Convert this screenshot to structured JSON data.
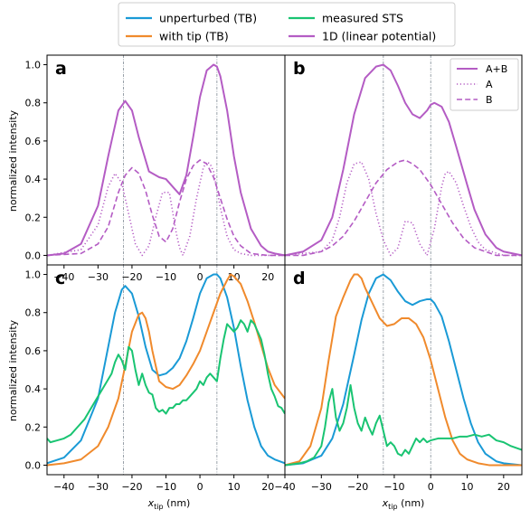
{
  "colors": {
    "unperturbed": "#1a9ad6",
    "with_tip": "#f08a2c",
    "measured": "#19c472",
    "linear": "#b45cc4",
    "vline": "#7f8a94"
  },
  "legend_top": [
    {
      "label": "unperturbed (TB)",
      "color": "#1a9ad6"
    },
    {
      "label": "with tip (TB)",
      "color": "#f08a2c"
    },
    {
      "label": "measured STS",
      "color": "#19c472"
    },
    {
      "label": "1D (linear potential)",
      "color": "#b45cc4"
    }
  ],
  "legend_panel_b": [
    {
      "label": "A+B",
      "style": "solid"
    },
    {
      "label": "A",
      "style": "dotted"
    },
    {
      "label": "B",
      "style": "dashed"
    }
  ],
  "ylabel": "normalized intensity",
  "xlabel_main": "x",
  "xlabel_sub": "tip",
  "xlabel_unit": " (nm)",
  "chart_data": [
    {
      "panel": "a",
      "type": "line",
      "xlim": [
        -45,
        25
      ],
      "ylim": [
        -0.05,
        1.05
      ],
      "xticks": [
        -40,
        -30,
        -20,
        -10,
        0,
        10,
        20
      ],
      "yticks": [
        0.0,
        0.2,
        0.4,
        0.6,
        0.8,
        1.0
      ],
      "vlines": [
        -22.5,
        5
      ],
      "series": [
        {
          "name": "A+B",
          "key": "linear",
          "dash": "solid",
          "x": [
            -45,
            -40,
            -35,
            -30,
            -27,
            -24,
            -22,
            -20,
            -18,
            -15,
            -12,
            -10,
            -8,
            -6,
            -4,
            -2,
            0,
            2,
            4,
            5,
            6,
            8,
            10,
            12,
            15,
            18,
            20,
            22,
            25
          ],
          "y": [
            0.0,
            0.01,
            0.06,
            0.26,
            0.52,
            0.76,
            0.81,
            0.76,
            0.62,
            0.44,
            0.41,
            0.4,
            0.36,
            0.32,
            0.42,
            0.62,
            0.83,
            0.97,
            1.0,
            0.99,
            0.94,
            0.76,
            0.52,
            0.33,
            0.14,
            0.05,
            0.02,
            0.01,
            0.0
          ]
        },
        {
          "name": "A",
          "key": "linear",
          "dash": "dotted",
          "x": [
            -45,
            -35,
            -30,
            -27,
            -25,
            -23,
            -22,
            -21,
            -19,
            -17,
            -15,
            -13,
            -11,
            -9,
            -7,
            -6,
            -5,
            -3,
            -1,
            1,
            2,
            3,
            4,
            6,
            8,
            10,
            12,
            15,
            20,
            25
          ],
          "y": [
            0.0,
            0.03,
            0.16,
            0.36,
            0.43,
            0.38,
            0.3,
            0.22,
            0.06,
            0.0,
            0.05,
            0.2,
            0.33,
            0.33,
            0.12,
            0.04,
            0.0,
            0.1,
            0.3,
            0.46,
            0.49,
            0.48,
            0.44,
            0.25,
            0.1,
            0.03,
            0.01,
            0.0,
            0.0,
            0.0
          ]
        },
        {
          "name": "B",
          "key": "linear",
          "dash": "dashed",
          "x": [
            -45,
            -35,
            -30,
            -27,
            -24,
            -22,
            -20,
            -18,
            -16,
            -14,
            -12,
            -10,
            -8,
            -6,
            -4,
            -2,
            0,
            2,
            4,
            6,
            8,
            10,
            12,
            15,
            20,
            25
          ],
          "y": [
            0.0,
            0.01,
            0.06,
            0.15,
            0.33,
            0.42,
            0.46,
            0.43,
            0.34,
            0.21,
            0.1,
            0.07,
            0.14,
            0.28,
            0.4,
            0.47,
            0.5,
            0.48,
            0.41,
            0.3,
            0.19,
            0.1,
            0.05,
            0.01,
            0.0,
            0.0
          ]
        }
      ]
    },
    {
      "panel": "b",
      "type": "line",
      "xlim": [
        -40,
        25
      ],
      "ylim": [
        -0.05,
        1.05
      ],
      "vlines": [
        -13,
        0
      ],
      "series": [
        {
          "name": "A+B",
          "key": "linear",
          "dash": "solid",
          "x": [
            -40,
            -35,
            -30,
            -27,
            -24,
            -21,
            -18,
            -15,
            -13,
            -11,
            -9,
            -7,
            -5,
            -3,
            -1,
            0,
            1,
            3,
            5,
            7,
            10,
            12,
            15,
            18,
            20,
            25
          ],
          "y": [
            0.0,
            0.02,
            0.08,
            0.2,
            0.45,
            0.74,
            0.93,
            0.99,
            1.0,
            0.97,
            0.89,
            0.8,
            0.74,
            0.72,
            0.76,
            0.79,
            0.8,
            0.78,
            0.7,
            0.57,
            0.37,
            0.24,
            0.11,
            0.04,
            0.02,
            0.0
          ]
        },
        {
          "name": "A",
          "key": "linear",
          "dash": "dotted",
          "x": [
            -40,
            -30,
            -27,
            -25,
            -23,
            -21,
            -19,
            -17,
            -15,
            -13,
            -11,
            -9,
            -7,
            -5,
            -3,
            -1,
            1,
            3,
            4,
            5,
            7,
            9,
            11,
            13,
            15,
            20,
            25
          ],
          "y": [
            0.0,
            0.02,
            0.08,
            0.2,
            0.38,
            0.48,
            0.49,
            0.4,
            0.22,
            0.08,
            0.0,
            0.04,
            0.18,
            0.17,
            0.06,
            0.0,
            0.14,
            0.36,
            0.43,
            0.44,
            0.38,
            0.26,
            0.15,
            0.07,
            0.03,
            0.0,
            0.0
          ]
        },
        {
          "name": "B",
          "key": "linear",
          "dash": "dashed",
          "x": [
            -40,
            -35,
            -30,
            -27,
            -24,
            -21,
            -18,
            -15,
            -12,
            -9,
            -7,
            -5,
            -3,
            0,
            3,
            6,
            9,
            12,
            15,
            18,
            22,
            25
          ],
          "y": [
            0.0,
            0.0,
            0.02,
            0.05,
            0.1,
            0.18,
            0.28,
            0.38,
            0.45,
            0.49,
            0.5,
            0.48,
            0.45,
            0.37,
            0.27,
            0.17,
            0.09,
            0.04,
            0.02,
            0.0,
            0.0,
            0.0
          ]
        }
      ]
    },
    {
      "panel": "c",
      "type": "line",
      "xlim": [
        -45,
        25
      ],
      "ylim": [
        -0.05,
        1.05
      ],
      "xticks": [
        -40,
        -30,
        -20,
        -10,
        0,
        10,
        20
      ],
      "yticks": [
        0.0,
        0.2,
        0.4,
        0.6,
        0.8,
        1.0
      ],
      "vlines": [
        -22.5,
        5
      ],
      "series": [
        {
          "name": "unperturbed (TB)",
          "key": "unperturbed",
          "dash": "solid",
          "x": [
            -45,
            -40,
            -35,
            -30,
            -27,
            -25,
            -23,
            -22,
            -20,
            -18,
            -16,
            -14,
            -12,
            -10,
            -8,
            -6,
            -4,
            -2,
            0,
            2,
            4,
            5,
            6,
            8,
            10,
            12,
            14,
            16,
            18,
            20,
            22,
            25
          ],
          "y": [
            0.01,
            0.04,
            0.13,
            0.35,
            0.62,
            0.8,
            0.92,
            0.94,
            0.9,
            0.78,
            0.62,
            0.5,
            0.47,
            0.48,
            0.51,
            0.56,
            0.65,
            0.77,
            0.9,
            0.98,
            1.0,
            1.0,
            0.98,
            0.88,
            0.72,
            0.52,
            0.34,
            0.2,
            0.1,
            0.05,
            0.03,
            0.01
          ]
        },
        {
          "name": "with tip (TB)",
          "key": "with_tip",
          "dash": "solid",
          "x": [
            -45,
            -40,
            -35,
            -30,
            -27,
            -24,
            -22,
            -20,
            -18,
            -17,
            -16,
            -15,
            -14,
            -12,
            -10,
            -8,
            -6,
            -4,
            -2,
            0,
            2,
            4,
            6,
            8,
            9,
            10,
            12,
            14,
            16,
            18,
            20,
            22,
            25
          ],
          "y": [
            0.0,
            0.01,
            0.03,
            0.1,
            0.2,
            0.35,
            0.52,
            0.7,
            0.79,
            0.8,
            0.77,
            0.7,
            0.6,
            0.44,
            0.41,
            0.4,
            0.42,
            0.47,
            0.53,
            0.6,
            0.7,
            0.8,
            0.9,
            0.97,
            1.0,
            0.99,
            0.95,
            0.86,
            0.75,
            0.63,
            0.51,
            0.42,
            0.35
          ]
        },
        {
          "name": "measured STS",
          "key": "measured",
          "dash": "solid",
          "x": [
            -45,
            -44,
            -42,
            -40,
            -38,
            -36,
            -34,
            -32,
            -30,
            -28,
            -26,
            -25,
            -24,
            -23,
            -22,
            -21,
            -20,
            -19,
            -18,
            -17,
            -16,
            -15,
            -14,
            -13,
            -12,
            -11,
            -10,
            -9,
            -8,
            -7,
            -6,
            -5,
            -4,
            -3,
            -2,
            -1,
            0,
            1,
            2,
            3,
            4,
            5,
            6,
            7,
            8,
            9,
            10,
            11,
            12,
            13,
            14,
            15,
            16,
            17,
            18,
            19,
            20,
            21,
            22,
            23,
            24,
            25
          ],
          "y": [
            0.14,
            0.12,
            0.13,
            0.14,
            0.16,
            0.2,
            0.24,
            0.3,
            0.36,
            0.42,
            0.48,
            0.54,
            0.58,
            0.55,
            0.5,
            0.62,
            0.6,
            0.5,
            0.42,
            0.48,
            0.42,
            0.38,
            0.37,
            0.3,
            0.28,
            0.29,
            0.27,
            0.3,
            0.3,
            0.32,
            0.32,
            0.34,
            0.34,
            0.36,
            0.38,
            0.4,
            0.44,
            0.42,
            0.46,
            0.48,
            0.46,
            0.44,
            0.56,
            0.66,
            0.74,
            0.72,
            0.7,
            0.72,
            0.76,
            0.74,
            0.7,
            0.76,
            0.74,
            0.7,
            0.66,
            0.58,
            0.48,
            0.4,
            0.36,
            0.31,
            0.3,
            0.27
          ]
        }
      ]
    },
    {
      "panel": "d",
      "type": "line",
      "xlim": [
        -40,
        25
      ],
      "ylim": [
        -0.05,
        1.05
      ],
      "xticks": [
        -40,
        -30,
        -20,
        -10,
        0,
        10,
        20
      ],
      "vlines": [
        -13,
        0
      ],
      "series": [
        {
          "name": "unperturbed (TB)",
          "key": "unperturbed",
          "dash": "solid",
          "x": [
            -40,
            -35,
            -30,
            -27,
            -24,
            -21,
            -19,
            -17,
            -15,
            -13,
            -11,
            -9,
            -7,
            -5,
            -3,
            -1,
            0,
            1,
            3,
            5,
            7,
            9,
            11,
            13,
            15,
            18,
            20,
            25
          ],
          "y": [
            0.0,
            0.01,
            0.05,
            0.14,
            0.32,
            0.58,
            0.76,
            0.9,
            0.98,
            1.0,
            0.97,
            0.91,
            0.86,
            0.84,
            0.86,
            0.87,
            0.87,
            0.85,
            0.78,
            0.65,
            0.5,
            0.35,
            0.22,
            0.12,
            0.06,
            0.02,
            0.01,
            0.0
          ]
        },
        {
          "name": "with tip (TB)",
          "key": "with_tip",
          "dash": "solid",
          "x": [
            -40,
            -36,
            -33,
            -30,
            -28,
            -26,
            -24,
            -22,
            -21,
            -20,
            -19,
            -18,
            -16,
            -14,
            -12,
            -10,
            -8,
            -6,
            -4,
            -2,
            0,
            2,
            4,
            6,
            8,
            10,
            13,
            16,
            20,
            25
          ],
          "y": [
            0.0,
            0.02,
            0.1,
            0.3,
            0.55,
            0.78,
            0.88,
            0.97,
            1.0,
            1.0,
            0.98,
            0.93,
            0.85,
            0.77,
            0.73,
            0.74,
            0.77,
            0.77,
            0.74,
            0.67,
            0.55,
            0.4,
            0.25,
            0.13,
            0.06,
            0.03,
            0.01,
            0.0,
            0.0,
            0.0
          ]
        },
        {
          "name": "measured STS",
          "key": "measured",
          "dash": "solid",
          "x": [
            -40,
            -36,
            -34,
            -32,
            -30,
            -29,
            -28,
            -27,
            -26,
            -25,
            -24,
            -23,
            -22,
            -21,
            -20,
            -19,
            -18,
            -17,
            -16,
            -15,
            -14,
            -13,
            -12,
            -11,
            -10,
            -9,
            -8,
            -7,
            -6,
            -5,
            -4,
            -3,
            -2,
            -1,
            0,
            2,
            4,
            6,
            8,
            10,
            12,
            14,
            16,
            18,
            20,
            22,
            25
          ],
          "y": [
            0.0,
            0.01,
            0.02,
            0.04,
            0.1,
            0.2,
            0.33,
            0.4,
            0.25,
            0.18,
            0.22,
            0.3,
            0.42,
            0.3,
            0.22,
            0.18,
            0.25,
            0.2,
            0.16,
            0.22,
            0.26,
            0.18,
            0.1,
            0.12,
            0.1,
            0.06,
            0.05,
            0.08,
            0.06,
            0.1,
            0.14,
            0.12,
            0.14,
            0.12,
            0.13,
            0.14,
            0.14,
            0.14,
            0.15,
            0.15,
            0.16,
            0.15,
            0.16,
            0.13,
            0.12,
            0.1,
            0.08
          ]
        }
      ]
    }
  ]
}
